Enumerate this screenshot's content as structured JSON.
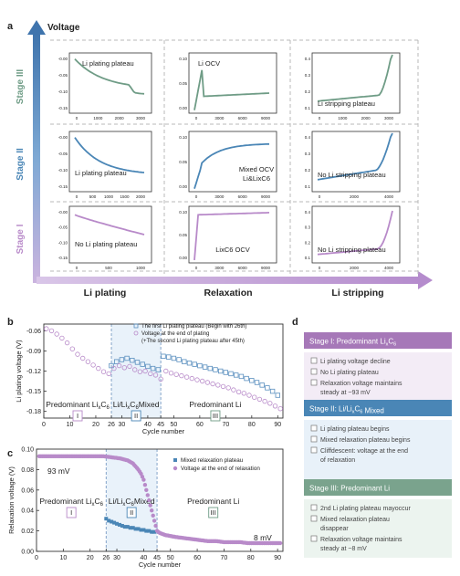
{
  "panel_a": {
    "label": "a",
    "y_axis_title": "Voltage",
    "stages": [
      "Stage III",
      "Stage II",
      "Stage I"
    ],
    "columns": [
      "Li plating",
      "Relaxation",
      "Li stripping"
    ],
    "cells": [
      {
        "row": 0,
        "col": 0,
        "label": "Li plating plateau",
        "yticks": [
          "-0.00",
          "-0.05",
          "-0.10",
          "-0.15"
        ],
        "xticks": [
          "0",
          "1000",
          "2000",
          "3000"
        ]
      },
      {
        "row": 0,
        "col": 1,
        "label": "Li OCV",
        "yticks": [
          "0.10",
          "0.05",
          "0.00"
        ],
        "xticks": [
          "0",
          "3000",
          "6000",
          "9000"
        ]
      },
      {
        "row": 0,
        "col": 2,
        "label": "Li stripping plateau",
        "yticks": [
          "0.4",
          "0.3",
          "0.2",
          "0.1"
        ],
        "xticks": [
          "0",
          "1000",
          "2000",
          "3000"
        ]
      },
      {
        "row": 1,
        "col": 0,
        "label": "Li plating plateau",
        "yticks": [
          "-0.00",
          "-0.05",
          "-0.10",
          "-0.15"
        ],
        "xticks": [
          "0",
          "500",
          "1000",
          "1500",
          "2000"
        ]
      },
      {
        "row": 1,
        "col": 1,
        "label": "Mixed OCV\nLi&LixC6",
        "yticks": [
          "0.10",
          "0.05",
          "0.00"
        ],
        "xticks": [
          "0",
          "3000",
          "6000",
          "9000"
        ]
      },
      {
        "row": 1,
        "col": 2,
        "label": "No Li stripping plateau",
        "yticks": [
          "0.4",
          "0.3",
          "0.2",
          "0.1"
        ],
        "xticks": [
          "0",
          "2000",
          "4000"
        ]
      },
      {
        "row": 2,
        "col": 0,
        "label": "No Li plating plateau",
        "yticks": [
          "-0.00",
          "-0.05",
          "-0.10",
          "-0.15"
        ],
        "xticks": [
          "0",
          "500",
          "1000"
        ]
      },
      {
        "row": 2,
        "col": 1,
        "label": "LixC6 OCV",
        "yticks": [
          "0.10",
          "0.05",
          "0.00"
        ],
        "xticks": [
          "0",
          "3000",
          "6000",
          "9000"
        ]
      },
      {
        "row": 2,
        "col": 2,
        "label": "No Li stripping plateau",
        "yticks": [
          "0.4",
          "0.3",
          "0.2",
          "0.1"
        ],
        "xticks": [
          "0",
          "2000",
          "4000"
        ]
      }
    ]
  },
  "chart_data": [
    {
      "panel": "b",
      "type": "scatter",
      "ylabel": "Li plating voltage (V)",
      "xlabel": "Cycle number",
      "xlim": [
        0,
        92
      ],
      "ylim": [
        -0.19,
        -0.05
      ],
      "xticks": [
        0,
        10,
        20,
        26,
        30,
        40,
        45,
        50,
        60,
        70,
        80,
        90
      ],
      "yticks": [
        -0.06,
        -0.09,
        -0.12,
        -0.15,
        -0.18
      ],
      "ytick_labels": [
        "-0.06",
        "-0.09",
        "-0.12",
        "-0.15",
        "-0.18"
      ],
      "legend": [
        "The first Li plating plateau (Begin with 26th)",
        "Voltage at the end of plating",
        "(+The second Li plating plateau after 45th)"
      ],
      "regions": [
        "Predominant LixC6",
        "Li/LixC6 Mixed",
        "Predominant Li"
      ],
      "region_labels": [
        "I",
        "II",
        "III"
      ],
      "series": [
        {
          "name": "The first Li plating plateau (Begin with 26th)",
          "x": [
            26,
            28,
            30,
            32,
            34,
            36,
            38,
            40,
            42,
            44,
            46,
            48,
            50,
            52,
            54,
            56,
            58,
            60,
            62,
            64,
            66,
            68,
            70,
            72,
            74,
            76,
            78,
            80,
            82,
            84,
            86,
            88,
            90
          ],
          "y": [
            -0.112,
            -0.106,
            -0.103,
            -0.101,
            -0.104,
            -0.107,
            -0.11,
            -0.113,
            -0.116,
            -0.118,
            -0.098,
            -0.099,
            -0.101,
            -0.103,
            -0.106,
            -0.108,
            -0.11,
            -0.112,
            -0.114,
            -0.116,
            -0.118,
            -0.12,
            -0.122,
            -0.124,
            -0.126,
            -0.128,
            -0.131,
            -0.134,
            -0.137,
            -0.141,
            -0.145,
            -0.15,
            -0.156
          ]
        },
        {
          "name": "Voltage at the end of plating",
          "x": [
            1,
            3,
            5,
            7,
            9,
            11,
            13,
            15,
            17,
            19,
            21,
            23,
            25,
            27,
            29,
            31,
            33,
            35,
            37,
            39,
            41,
            43,
            45,
            47,
            49,
            51,
            53,
            55,
            57,
            59,
            61,
            63,
            65,
            67,
            69,
            71,
            73,
            75,
            77,
            79,
            81,
            83,
            85,
            87,
            89,
            91
          ],
          "y": [
            -0.057,
            -0.06,
            -0.065,
            -0.071,
            -0.078,
            -0.087,
            -0.095,
            -0.101,
            -0.106,
            -0.111,
            -0.116,
            -0.121,
            -0.124,
            -0.116,
            -0.112,
            -0.115,
            -0.113,
            -0.118,
            -0.121,
            -0.12,
            -0.124,
            -0.126,
            -0.132,
            -0.12,
            -0.123,
            -0.125,
            -0.127,
            -0.129,
            -0.131,
            -0.133,
            -0.135,
            -0.137,
            -0.139,
            -0.141,
            -0.143,
            -0.145,
            -0.148,
            -0.151,
            -0.153,
            -0.156,
            -0.159,
            -0.162,
            -0.165,
            -0.168,
            -0.172,
            -0.176
          ]
        }
      ]
    },
    {
      "panel": "c",
      "type": "scatter",
      "ylabel": "Relaxation voltage (V)",
      "xlabel": "Cycle number",
      "xlim": [
        0,
        92
      ],
      "ylim": [
        0.0,
        0.1
      ],
      "xticks": [
        0,
        10,
        20,
        26,
        30,
        40,
        45,
        50,
        60,
        70,
        80,
        90
      ],
      "yticks": [
        0.0,
        0.02,
        0.04,
        0.06,
        0.08,
        0.1
      ],
      "ytick_labels": [
        "0.00",
        "0.02",
        "0.04",
        "0.06",
        "0.08",
        "0.10"
      ],
      "legend": [
        "Mixed relaxation plateau",
        "Voltage at the end of relaxation"
      ],
      "annotations": [
        "93 mV",
        "8 mV"
      ],
      "regions": [
        "Predominant LixC6",
        "Li/LixC6 Mixed",
        "Predominant Li"
      ],
      "region_labels": [
        "I",
        "II",
        "III"
      ],
      "series": [
        {
          "name": "Mixed relaxation plateau",
          "x": [
            26,
            27,
            28,
            29,
            30,
            31,
            32,
            33,
            34,
            35,
            36,
            37,
            38,
            39,
            40,
            41,
            42,
            43,
            44
          ],
          "y": [
            0.032,
            0.03,
            0.029,
            0.028,
            0.027,
            0.026,
            0.025,
            0.024,
            0.024,
            0.023,
            0.023,
            0.022,
            0.022,
            0.021,
            0.021,
            0.02,
            0.02,
            0.019,
            0.019
          ]
        },
        {
          "name": "Voltage at the end of relaxation",
          "x": [
            1,
            4,
            7,
            10,
            13,
            16,
            19,
            22,
            25,
            28,
            31,
            34,
            36,
            38,
            39,
            40,
            41,
            42,
            43,
            44,
            45,
            46,
            48,
            50,
            52,
            55,
            58,
            61,
            64,
            67,
            70,
            73,
            76,
            79,
            82,
            85,
            88,
            91
          ],
          "y": [
            0.093,
            0.093,
            0.093,
            0.093,
            0.093,
            0.093,
            0.093,
            0.093,
            0.093,
            0.092,
            0.091,
            0.089,
            0.086,
            0.08,
            0.076,
            0.07,
            0.06,
            0.05,
            0.04,
            0.03,
            0.02,
            0.018,
            0.016,
            0.015,
            0.014,
            0.013,
            0.012,
            0.011,
            0.01,
            0.01,
            0.009,
            0.009,
            0.009,
            0.008,
            0.008,
            0.008,
            0.008,
            0.008
          ]
        }
      ]
    }
  ],
  "panel_d": {
    "label": "d",
    "boxes": [
      {
        "title": "Stage I: Predominant LixC6",
        "color": "#a678b8",
        "bg": "#f3ecf6",
        "items": [
          "Li plating voltage decline",
          "No Li plating plateau",
          "Relaxation voltage maintains steady at ~93 mV"
        ]
      },
      {
        "title": "Stage II: Li/LixC6 Mixed",
        "color": "#4a86b6",
        "bg": "#e8f1f9",
        "items": [
          "Li plating plateau begins",
          "Mixed relaxation plateau begins",
          "Cliffdescent: voltage at the end of relaxation"
        ]
      },
      {
        "title": "Stage III: Predominant Li",
        "color": "#7aa38d",
        "bg": "#ecf4ef",
        "items": [
          "2nd Li plating plateau mayoccur",
          "Mixed relaxation plateau disappear",
          "Relaxation voltage maintains steady at ~8 mV"
        ]
      }
    ]
  },
  "colors": {
    "blue": "#4a86b6",
    "purple": "#b88ac9",
    "green": "#6f9c86",
    "region_lilac": "#f4eef7",
    "region_blue": "#e9f2fa"
  }
}
